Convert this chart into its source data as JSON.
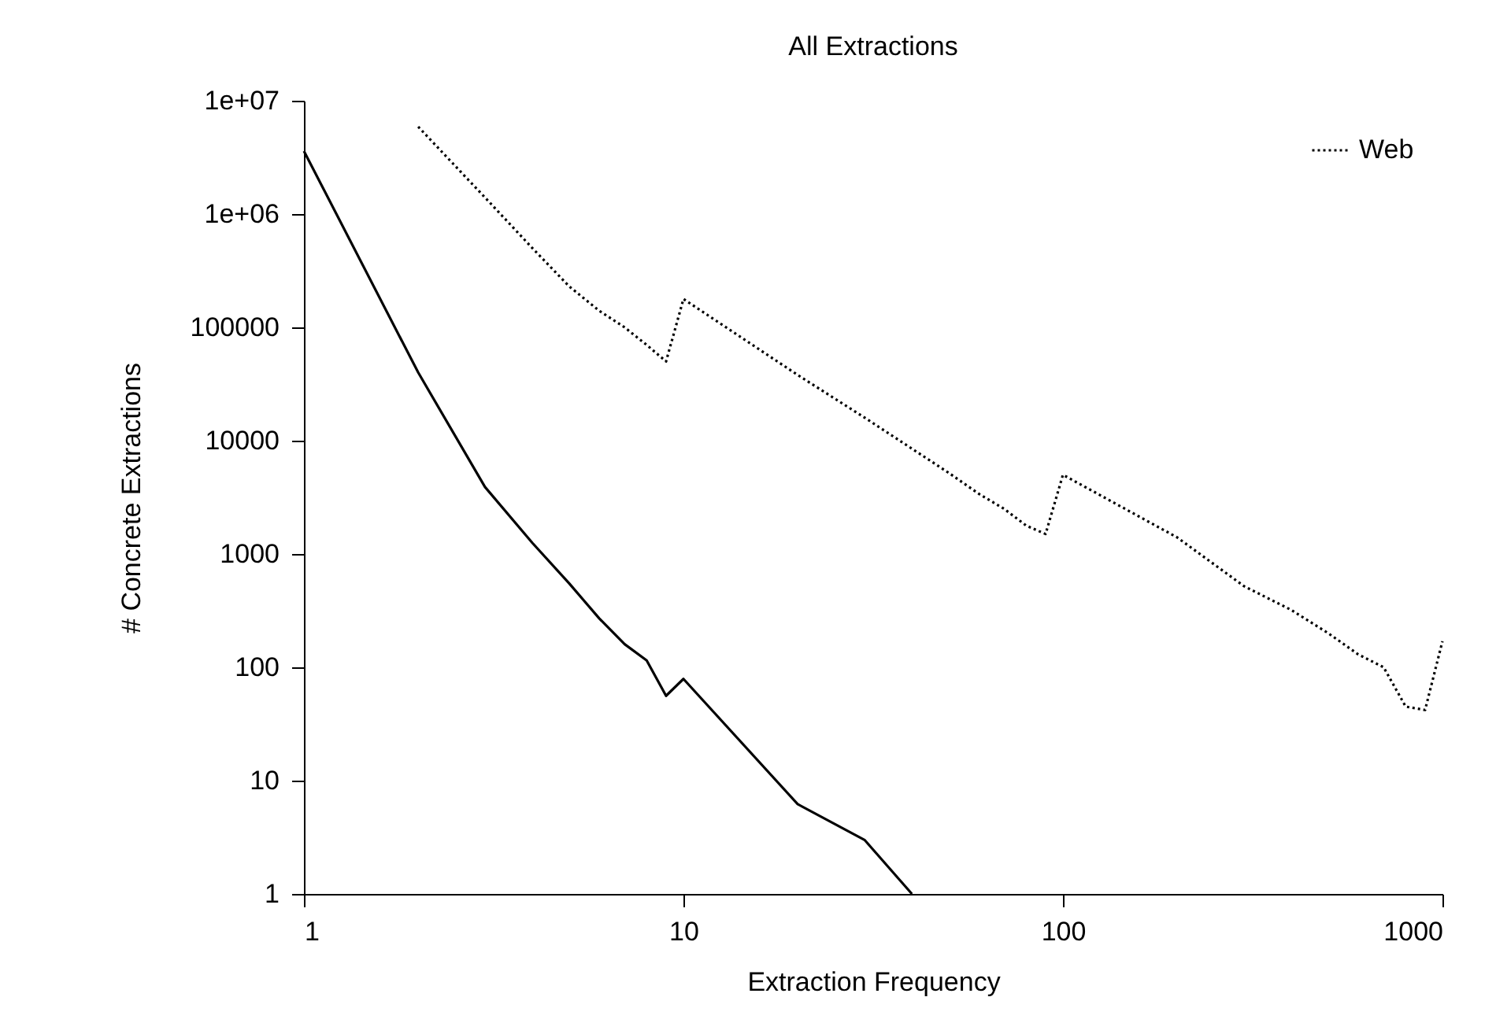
{
  "chart_data": {
    "type": "line",
    "title": "All Extractions",
    "xlabel": "Extraction Frequency",
    "ylabel": "# Concrete Extractions",
    "log": "xy",
    "grid": false,
    "legend": "top right",
    "marker": "none",
    "xlim": [
      1,
      1000
    ],
    "xticks": [
      1,
      10,
      100,
      1000
    ],
    "ylim": [
      1,
      10000000
    ],
    "yticks": [
      1,
      10,
      100,
      1000,
      10000,
      100000,
      {
        "value": 1000000,
        "label": "1e+06"
      },
      {
        "value": 10000000,
        "label": "1e+07"
      }
    ],
    "series": [
      {
        "color": "#000000",
        "line_style": "solid",
        "x": [
          1,
          2,
          3,
          4,
          5,
          6,
          7,
          8,
          9,
          10,
          20,
          30,
          40
        ],
        "values": [
          3600000,
          40000,
          3900,
          1250,
          550,
          270,
          160,
          115,
          56,
          79,
          6.2,
          3,
          1
        ]
      },
      {
        "name": "Web",
        "color": "#000000",
        "line_style": "dotted",
        "x": [
          2,
          3,
          4,
          5,
          6,
          7,
          8,
          9,
          10,
          20,
          30,
          40,
          50,
          60,
          70,
          80,
          90,
          100,
          200,
          300,
          400,
          500,
          600,
          700,
          800,
          900,
          1000
        ],
        "values": [
          5900000,
          1400000,
          500000,
          230000,
          140000,
          100000,
          70000,
          50000,
          178000,
          38000,
          16000,
          8500,
          5200,
          3400,
          2500,
          1780,
          1500,
          5000,
          1400,
          520,
          320,
          200,
          130,
          100,
          45,
          42,
          170
        ]
      }
    ]
  }
}
